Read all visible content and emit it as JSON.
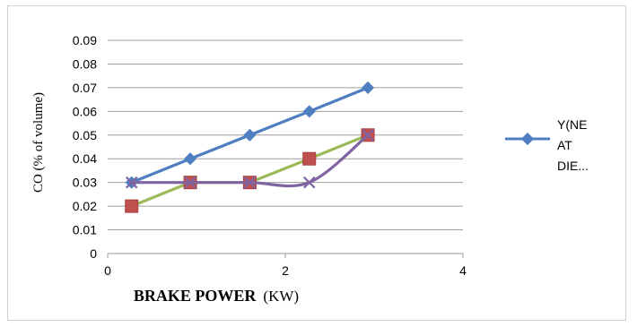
{
  "chart_data": {
    "type": "line",
    "title": "",
    "xlabel_bold": "BRAKE POWER",
    "xlabel_unit": "(KW)",
    "ylabel": "CO (% of volume)",
    "xlim": [
      0,
      4
    ],
    "ylim": [
      0,
      0.09
    ],
    "x_ticks": [
      "0",
      "2",
      "4"
    ],
    "y_ticks": [
      "0",
      "0.01",
      "0.02",
      "0.03",
      "0.04",
      "0.05",
      "0.06",
      "0.07",
      "0.08",
      "0.09"
    ],
    "grid": true,
    "legend_position": "right",
    "legend_lines": [
      "Y(NE",
      "AT",
      "DIE..."
    ],
    "x": [
      0.27,
      0.93,
      1.6,
      2.27,
      2.93
    ],
    "series": [
      {
        "color": "#4f7fc1",
        "marker": "diamond",
        "values": [
          0.03,
          0.04,
          0.05,
          0.06,
          0.07
        ]
      },
      {
        "color": "#9bbb59",
        "marker": "square",
        "marker_color": "#c0504d",
        "values": [
          0.02,
          0.03,
          0.03,
          0.04,
          0.05
        ]
      },
      {
        "color": "#8064a2",
        "marker": "x",
        "smooth": true,
        "values": [
          0.03,
          0.03,
          0.03,
          0.03,
          0.05
        ]
      }
    ]
  }
}
